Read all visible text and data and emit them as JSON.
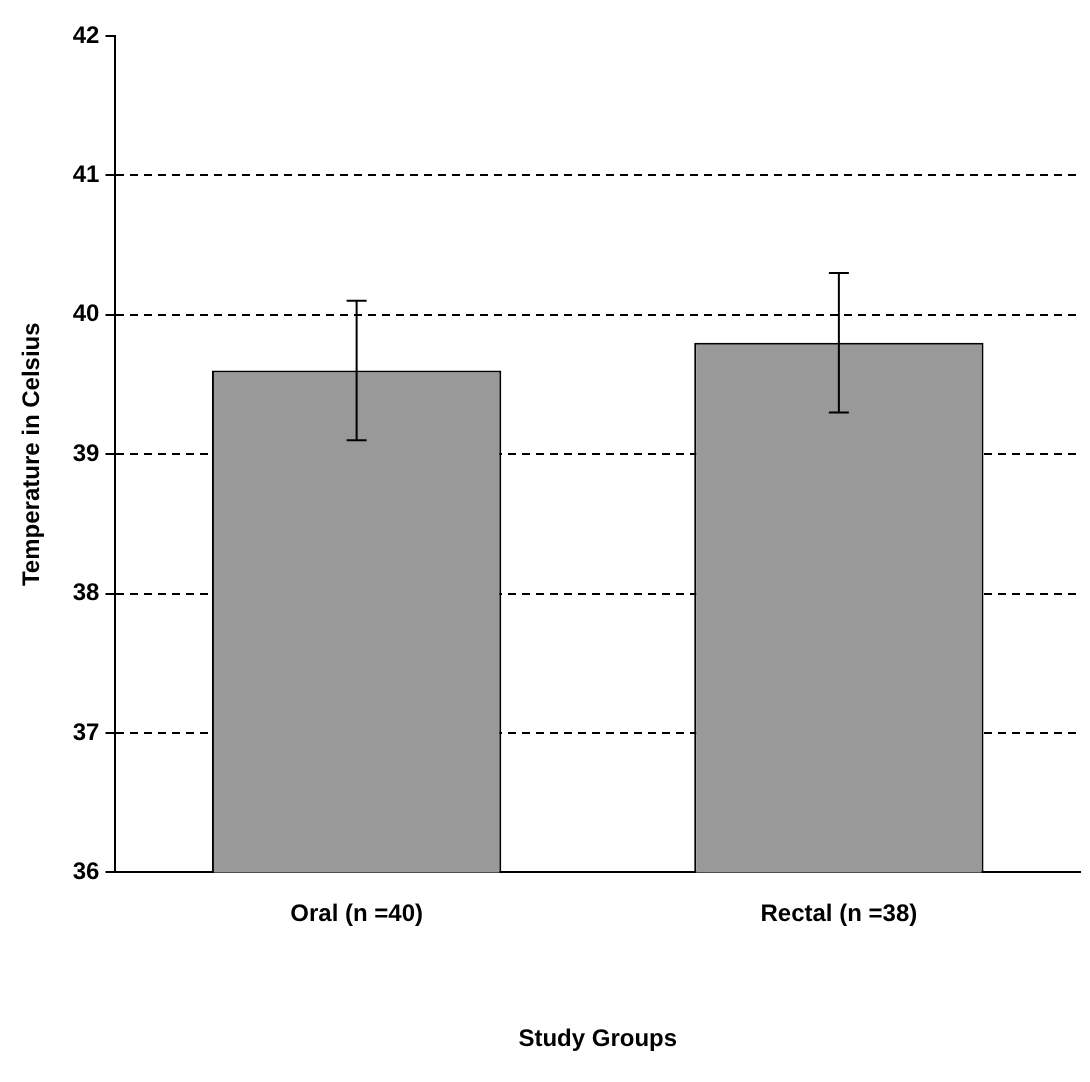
{
  "chart_data": {
    "type": "bar",
    "xlabel": "Study Groups",
    "ylabel": "Temperature in Celsius",
    "categories": [
      "Oral (n =40)",
      "Rectal (n =38)"
    ],
    "values": [
      39.6,
      39.8
    ],
    "errors": [
      0.5,
      0.5
    ],
    "color": "#999999",
    "ylim": [
      36,
      42
    ],
    "yticks": [
      36,
      37,
      38,
      39,
      40,
      41,
      42
    ],
    "grid": "y",
    "line_style": "dashed",
    "legend": false
  }
}
